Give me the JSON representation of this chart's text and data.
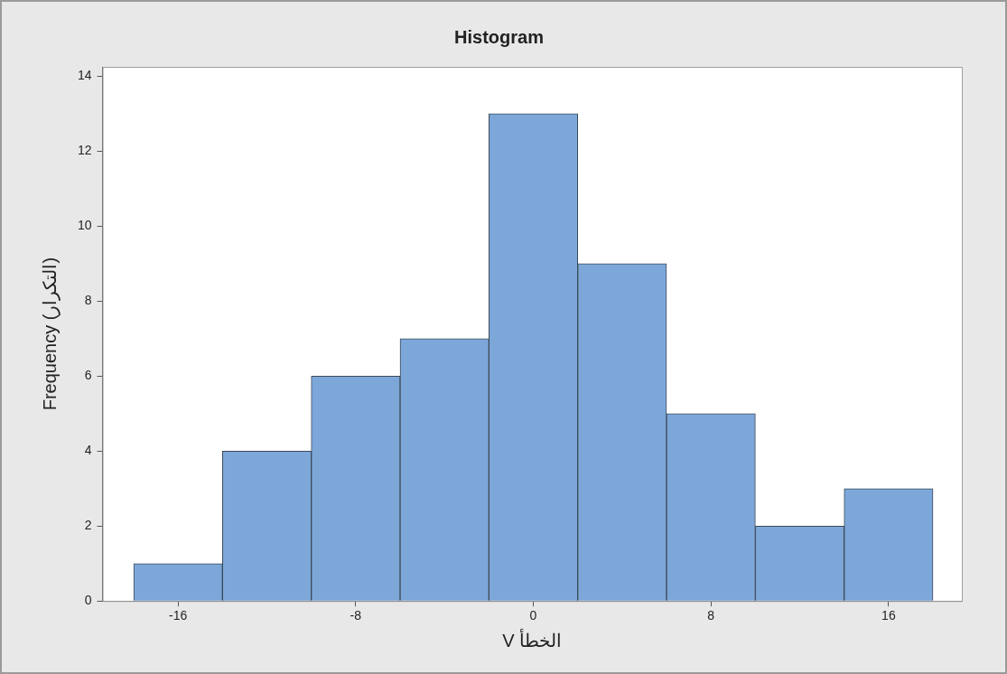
{
  "chart_data": {
    "type": "histogram",
    "title": "Histogram",
    "xlabel": "V الخطأ",
    "ylabel": "Frequency (التكرار)",
    "bins": [
      -18,
      -14,
      -10,
      -6,
      -2,
      2,
      6,
      10,
      14,
      18
    ],
    "values": [
      1,
      4,
      6,
      7,
      13,
      9,
      5,
      2,
      3
    ],
    "color": "#7da7d9",
    "xlim": [
      -19.4,
      19.3
    ],
    "xticks": [
      -16,
      -8,
      0,
      8,
      16
    ],
    "ylim": [
      0,
      14.25
    ],
    "yticks": [
      0,
      2,
      4,
      6,
      8,
      10,
      12,
      14
    ],
    "grid": false,
    "legend": false
  }
}
